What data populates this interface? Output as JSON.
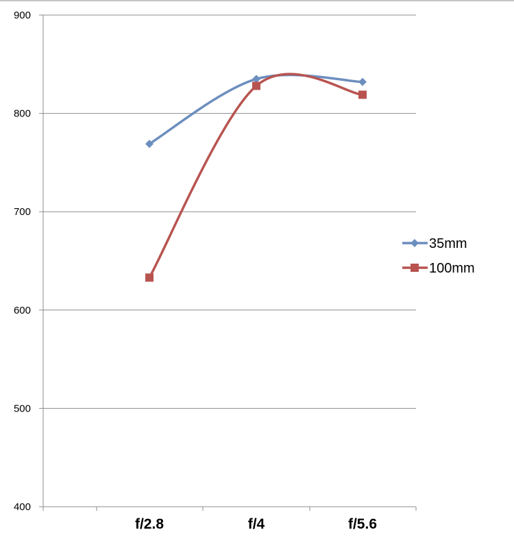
{
  "chart_data": {
    "type": "line",
    "title": "",
    "xlabel": "",
    "ylabel": "",
    "categories": [
      "f/2.8",
      "f/4",
      "f/5.6"
    ],
    "ylim": [
      400,
      900
    ],
    "yticks": [
      "400",
      "500",
      "600",
      "700",
      "800",
      "900"
    ],
    "grid": true,
    "smooth": true,
    "legend_position": "right",
    "series": [
      {
        "name": "35mm",
        "values": [
          769,
          835,
          832
        ],
        "color": "#6c8ebf",
        "marker": "diamond"
      },
      {
        "name": "100mm",
        "values": [
          633,
          828,
          819
        ],
        "color": "#b85450",
        "marker": "square"
      }
    ]
  }
}
